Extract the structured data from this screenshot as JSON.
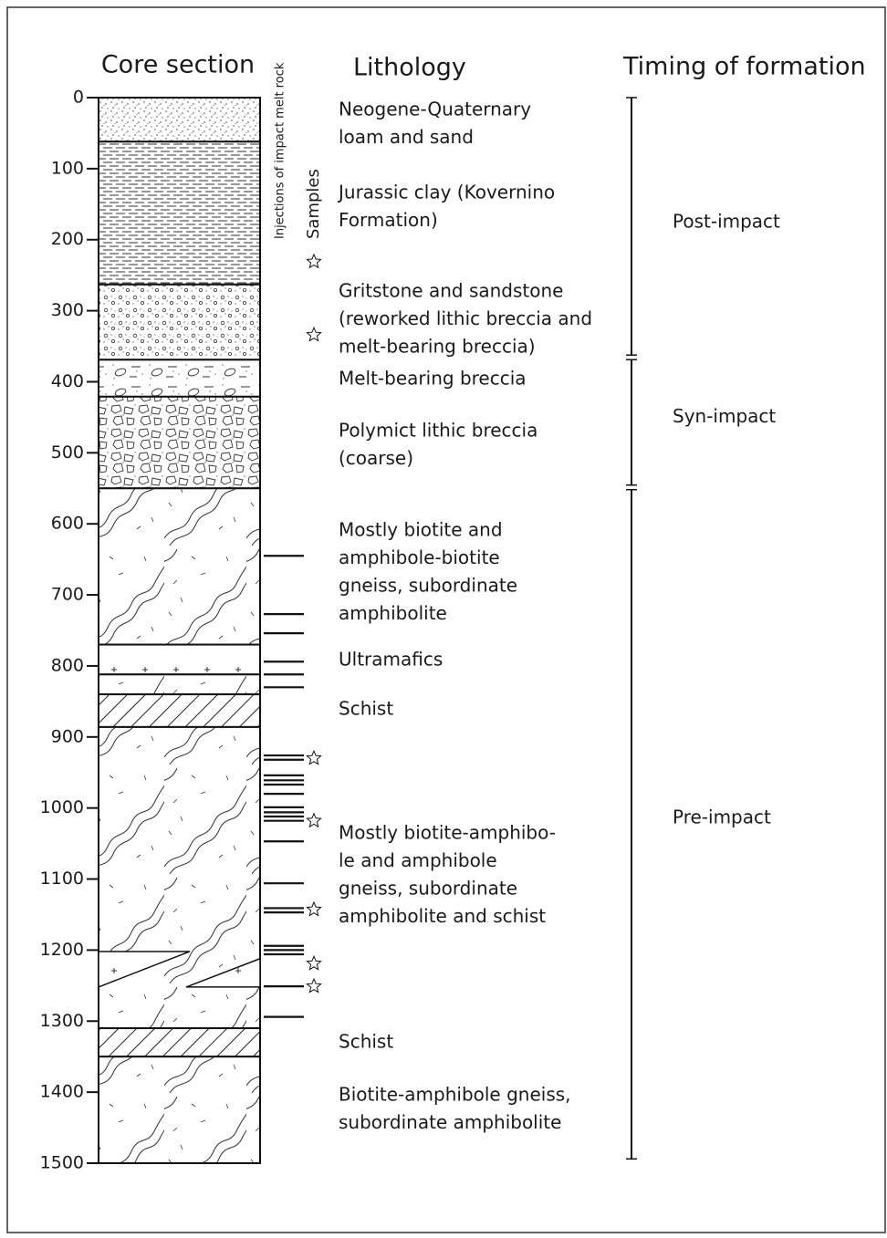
{
  "headers": {
    "core_section": "Core section",
    "injections": "Injections of impact melt rock",
    "samples": "Samples",
    "lithology": "Lithology",
    "timing": "Timing of formation"
  },
  "depth_axis": {
    "lim": [
      0,
      1500
    ],
    "ticks": [
      0,
      100,
      200,
      300,
      400,
      500,
      600,
      700,
      800,
      900,
      1000,
      1100,
      1200,
      1300,
      1400,
      1500
    ]
  },
  "layers": [
    [
      0,
      62
    ],
    [
      62,
      263
    ],
    [
      263,
      369
    ],
    [
      369,
      421
    ],
    [
      421,
      550
    ],
    [
      550,
      770
    ],
    [
      770,
      812
    ],
    [
      812,
      840
    ],
    [
      840,
      886
    ],
    [
      886,
      1310
    ],
    [
      1202,
      1252
    ],
    [
      1310,
      1350
    ],
    [
      1350,
      1500
    ]
  ],
  "injections": [
    645,
    727,
    754,
    794,
    812,
    830,
    926,
    932,
    954,
    961,
    967,
    980,
    999,
    1006,
    1012,
    1018,
    1047,
    1106,
    1141,
    1147,
    1194,
    1200,
    1206,
    1251,
    1294
  ],
  "samples": [
    231,
    334,
    930,
    1018,
    1143,
    1219,
    1251
  ],
  "lithology": [
    [
      "Neogene-Quaternary",
      "loam and sand"
    ],
    [
      "Jurassic clay (Kovernino",
      "Formation)"
    ],
    [
      "Gritstone and sandstone",
      "(reworked lithic breccia and",
      "melt-bearing breccia)"
    ],
    [
      "Melt-bearing breccia"
    ],
    [
      "Polymict lithic breccia",
      "(coarse)"
    ],
    [
      "Mostly biotite and",
      "amphibole-biotite",
      "gneiss, subordinate",
      "amphibolite"
    ],
    [
      "Ultramafics"
    ],
    [
      "Schist"
    ],
    [
      "Mostly biotite-amphibo-",
      "le and amphibole",
      "gneiss, subordinate",
      "amphibolite and schist"
    ],
    [
      "Schist"
    ],
    [
      "Biotite-amphibole gneiss,",
      "subordinate amphibolite"
    ]
  ],
  "timing": [
    {
      "label": "Post-impact",
      "range": [
        0,
        365
      ]
    },
    {
      "label": "Syn-impact",
      "range": [
        365,
        548
      ]
    },
    {
      "label": "Pre-impact",
      "range": [
        548,
        1494
      ]
    }
  ]
}
